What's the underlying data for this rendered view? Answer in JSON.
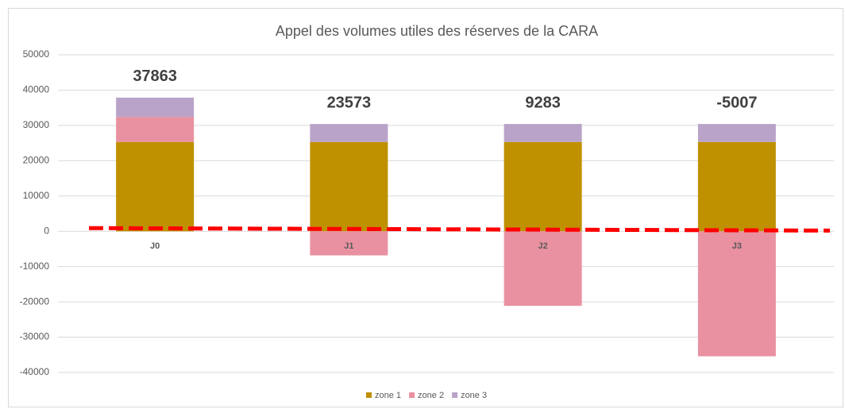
{
  "chart_data": {
    "type": "stacked_bar",
    "title": "Appel des volumes utiles des réserves de la CARA",
    "categories": [
      "J0",
      "J1",
      "J2",
      "J3"
    ],
    "series": [
      {
        "name": "zone 1",
        "color": "#bf9000",
        "values": [
          25300,
          25300,
          25300,
          25300
        ]
      },
      {
        "name": "zone 2",
        "color": "#e991a1",
        "values": [
          7100,
          -6827,
          -21117,
          -35407
        ]
      },
      {
        "name": "zone 3",
        "color": "#b9a3c8",
        "values": [
          5463,
          5100,
          5100,
          5100
        ]
      }
    ],
    "totals": [
      37863,
      23573,
      9283,
      -5007
    ],
    "reference_line": {
      "color": "#ff0000",
      "values": [
        900,
        200
      ]
    },
    "ylim": [
      -40000,
      50000
    ],
    "yticks": [
      -40000,
      -30000,
      -20000,
      -10000,
      0,
      10000,
      20000,
      30000,
      40000,
      50000
    ],
    "grid": true,
    "legend": "bottom"
  }
}
